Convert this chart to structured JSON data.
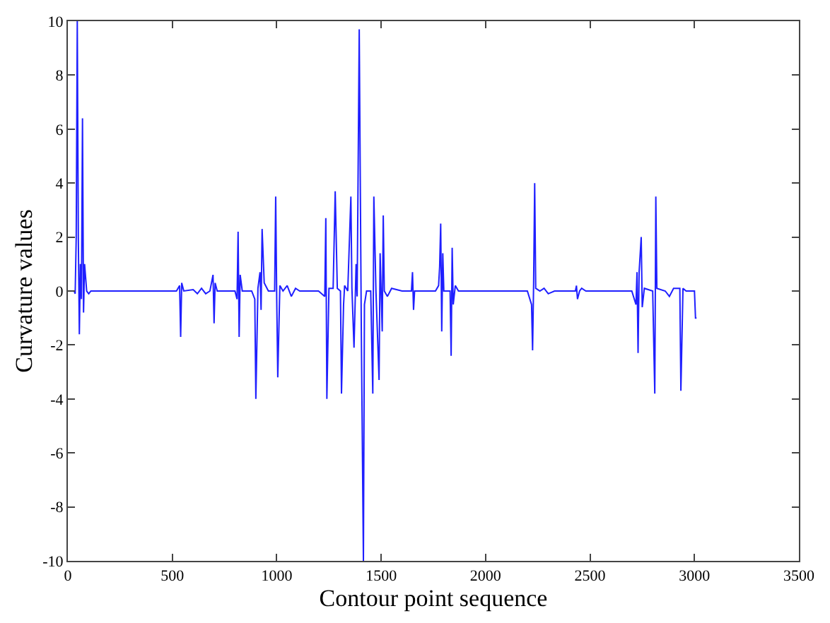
{
  "chart_data": {
    "type": "line",
    "xlabel": "Contour point sequence",
    "ylabel": "Curvature values",
    "xlim": [
      0,
      3500
    ],
    "xticks": [
      0,
      500,
      1000,
      1500,
      2000,
      2500,
      3000,
      3500
    ],
    "ylim": [
      -10,
      10
    ],
    "yticks": [
      -10,
      -8,
      -6,
      -4,
      -2,
      0,
      2,
      4,
      6,
      8,
      10
    ],
    "marker": "none",
    "line_style": "solid",
    "x": [
      0,
      30,
      35,
      40,
      45,
      50,
      55,
      60,
      65,
      70,
      75,
      80,
      85,
      90,
      100,
      110,
      520,
      535,
      540,
      545,
      555,
      600,
      620,
      640,
      660,
      680,
      695,
      700,
      705,
      715,
      800,
      810,
      815,
      820,
      825,
      835,
      880,
      895,
      900,
      910,
      920,
      925,
      930,
      940,
      960,
      990,
      995,
      1000,
      1005,
      1015,
      1030,
      1050,
      1070,
      1090,
      1110,
      1200,
      1230,
      1235,
      1240,
      1250,
      1270,
      1280,
      1290,
      1305,
      1310,
      1320,
      1325,
      1340,
      1355,
      1360,
      1370,
      1380,
      1385,
      1395,
      1405,
      1415,
      1420,
      1430,
      1450,
      1460,
      1465,
      1475,
      1490,
      1495,
      1505,
      1510,
      1515,
      1530,
      1550,
      1600,
      1645,
      1650,
      1655,
      1660,
      1760,
      1775,
      1780,
      1785,
      1790,
      1795,
      1800,
      1830,
      1835,
      1840,
      1845,
      1855,
      1870,
      2200,
      2220,
      2225,
      2230,
      2235,
      2240,
      2260,
      2280,
      2300,
      2330,
      2430,
      2435,
      2440,
      2450,
      2460,
      2480,
      2700,
      2720,
      2725,
      2730,
      2735,
      2745,
      2750,
      2760,
      2800,
      2810,
      2815,
      2820,
      2860,
      2880,
      2900,
      2930,
      2935,
      2945,
      2960,
      3000,
      3005,
      3010
    ],
    "series": [
      {
        "color": "#1f1fff",
        "values": [
          0,
          0,
          -0.1,
          2,
          10,
          2,
          -1.6,
          1,
          -0.3,
          6.4,
          -0.8,
          1,
          0.5,
          0,
          -0.1,
          0,
          0,
          0.2,
          -1.7,
          0.3,
          0,
          0.05,
          -0.1,
          0.1,
          -0.1,
          0,
          0.6,
          -1.2,
          0.3,
          0,
          0,
          -0.3,
          2.2,
          -1.7,
          0.6,
          0,
          0,
          -0.3,
          -4,
          0.1,
          0.7,
          -0.7,
          2.3,
          0.3,
          0,
          0,
          3.5,
          -0.3,
          -3.2,
          0.2,
          0,
          0.2,
          -0.2,
          0.1,
          0,
          0,
          -0.2,
          2.7,
          -4,
          0.1,
          0.1,
          3.7,
          0.1,
          0,
          -3.8,
          -0.5,
          0.2,
          0,
          3.5,
          0.1,
          -2.1,
          1,
          -0.2,
          9.7,
          -1.5,
          -10,
          -0.5,
          0,
          0,
          -3.8,
          3.5,
          0,
          -3.3,
          1.4,
          -1.5,
          2.8,
          0,
          -0.2,
          0.1,
          0,
          0,
          0.7,
          -0.7,
          0,
          0,
          0.2,
          0.9,
          2.5,
          -1.5,
          1.4,
          0,
          0,
          -2.4,
          1.6,
          -0.5,
          0.2,
          0,
          0,
          -0.5,
          -2.2,
          0.3,
          4,
          0.1,
          0,
          0.1,
          -0.1,
          0,
          0,
          0.2,
          -0.3,
          0,
          0.1,
          0,
          0,
          -0.5,
          0.7,
          -2.3,
          0.7,
          2,
          -0.6,
          0.1,
          0,
          -3.8,
          3.5,
          0.1,
          0,
          -0.2,
          0.1,
          0.1,
          -3.7,
          0.1,
          0,
          0,
          -1,
          -1
        ]
      }
    ]
  }
}
